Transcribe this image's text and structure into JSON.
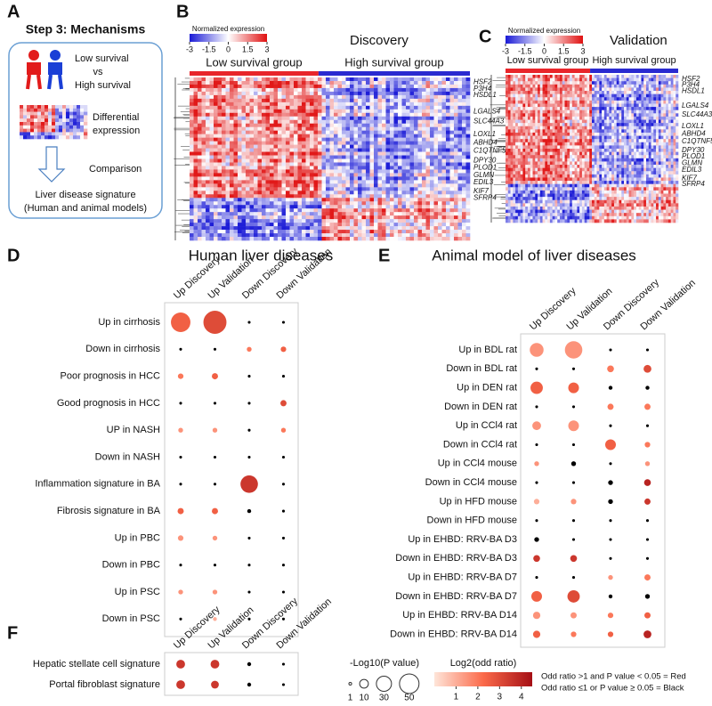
{
  "panel_labels": [
    "A",
    "B",
    "C",
    "D",
    "E",
    "F"
  ],
  "workflow": {
    "title": "Step 3: Mechanisms",
    "group_a": "Low survival",
    "versus": "vs",
    "group_b": "High survival",
    "step1": [
      "Differential",
      "expression"
    ],
    "step2": "Comparison",
    "result": [
      "Liver disease signature",
      "(Human and animal models)"
    ]
  },
  "chart_data": [
    {
      "type": "heatmap",
      "title": "Discovery",
      "colorbar_label": "Normalized expression",
      "colorbar_ticks": [
        -3,
        -1.5,
        0,
        1.5,
        3
      ],
      "groups": [
        {
          "name": "Low survival group",
          "color": "#e8252a"
        },
        {
          "name": "High survival group",
          "color": "#2a2ad0"
        }
      ],
      "genes": [
        "HSF2",
        "P3H4",
        "HSDL1",
        "LGALS4",
        "SLC44A3",
        "LOXL1",
        "ABHD4",
        "C1QTNF5",
        "DPY30",
        "PLOD1",
        "GLMN",
        "EDIL3",
        "KIF7",
        "SFRP4"
      ]
    },
    {
      "type": "heatmap",
      "title": "Validation",
      "colorbar_label": "Normalized expression",
      "colorbar_ticks": [
        -3,
        -1.5,
        0,
        1.5,
        3
      ],
      "groups": [
        {
          "name": "Low survival group",
          "color": "#e8252a"
        },
        {
          "name": "High survival group",
          "color": "#2a2ad0"
        }
      ],
      "genes": [
        "HSF2",
        "P3H4",
        "HSDL1",
        "LGALS4",
        "SLC44A3",
        "LOXL1",
        "ABHD4",
        "C1QTNF5",
        "DPY30",
        "PLOD1",
        "GLMN",
        "EDIL3",
        "KIF7",
        "SFRP4"
      ]
    },
    {
      "type": "dot",
      "title": "Human liver diseases",
      "columns": [
        "Up Discovery",
        "Up Validation",
        "Down Discovery",
        "Down Validation"
      ],
      "rows": [
        "Up in cirrhosis",
        "Down in cirrhosis",
        "Poor prognosis in HCC",
        "Good prognosis in HCC",
        "UP in NASH",
        "Down in NASH",
        "Inflammation signature in BA",
        "Fibrosis signature in BA",
        "Up in PBC",
        "Down in PBC",
        "Up in PSC",
        "Down in PSC"
      ],
      "size": [
        [
          50,
          70,
          1,
          1
        ],
        [
          1,
          1,
          3,
          4
        ],
        [
          4,
          5,
          1,
          1
        ],
        [
          1,
          1,
          1,
          5
        ],
        [
          3,
          3,
          1,
          3
        ],
        [
          1,
          1,
          1,
          1
        ],
        [
          1,
          1,
          40,
          1
        ],
        [
          5,
          5,
          2,
          1
        ],
        [
          4,
          3,
          1,
          1
        ],
        [
          1,
          1,
          1,
          1
        ],
        [
          3,
          3,
          1,
          1
        ],
        [
          1,
          2,
          1,
          1
        ]
      ],
      "log2_or": [
        [
          2.5,
          3,
          null,
          null
        ],
        [
          null,
          null,
          2,
          2.5
        ],
        [
          2,
          2.5,
          null,
          null
        ],
        [
          null,
          null,
          null,
          3
        ],
        [
          1.5,
          1.5,
          null,
          2
        ],
        [
          null,
          null,
          null,
          null
        ],
        [
          null,
          null,
          3.5,
          null
        ],
        [
          2.5,
          2.5,
          null,
          null
        ],
        [
          1.5,
          1.5,
          null,
          null
        ],
        [
          null,
          null,
          null,
          null
        ],
        [
          1.5,
          1.5,
          null,
          null
        ],
        [
          null,
          1,
          null,
          null
        ]
      ]
    },
    {
      "type": "dot",
      "title": "Animal model of liver diseases",
      "columns": [
        "Up Discovery",
        "Up Validation",
        "Down Discovery",
        "Down Validation"
      ],
      "rows": [
        "Up in BDL rat",
        "Down in BDL rat",
        "Up in DEN rat",
        "Down in DEN rat",
        "Up in CCl4 rat",
        "Down in CCl4 rat",
        "Up in CCl4 mouse",
        "Down in CCl4 mouse",
        "Up in HFD mouse",
        "Down in HFD mouse",
        "Up in EHBD: RRV-BA D3",
        "Down in EHBD: RRV-BA D3",
        "Up in EHBD: RRV-BA D7",
        "Down in EHBD: RRV-BA D7",
        "Up in EHBD: RRV-BA D14",
        "Down in EHBD: RRV-BA D14"
      ],
      "size": [
        [
          25,
          40,
          1,
          1
        ],
        [
          1,
          1,
          6,
          8
        ],
        [
          20,
          15,
          2,
          2
        ],
        [
          1,
          1,
          5,
          5
        ],
        [
          10,
          15,
          1,
          1
        ],
        [
          1,
          1,
          15,
          4
        ],
        [
          3,
          3,
          1,
          3
        ],
        [
          1,
          1,
          3,
          6
        ],
        [
          4,
          4,
          3,
          5
        ],
        [
          1,
          1,
          1,
          1
        ],
        [
          3,
          1,
          1,
          1
        ],
        [
          6,
          6,
          1,
          1
        ],
        [
          1,
          1,
          3,
          5
        ],
        [
          15,
          20,
          2,
          3
        ],
        [
          7,
          5,
          4,
          5
        ],
        [
          7,
          4,
          4,
          8
        ]
      ],
      "log2_or": [
        [
          1.5,
          1.5,
          null,
          null
        ],
        [
          null,
          null,
          2,
          3
        ],
        [
          2.5,
          2.5,
          null,
          null
        ],
        [
          null,
          null,
          2,
          2
        ],
        [
          1.5,
          1.5,
          null,
          null
        ],
        [
          null,
          null,
          2.5,
          2
        ],
        [
          1.5,
          null,
          null,
          1.5
        ],
        [
          null,
          null,
          null,
          4
        ],
        [
          1,
          1.5,
          null,
          3.5
        ],
        [
          null,
          null,
          null,
          null
        ],
        [
          null,
          null,
          null,
          null
        ],
        [
          3.5,
          3.5,
          null,
          null
        ],
        [
          null,
          null,
          1.5,
          2
        ],
        [
          2.5,
          3,
          null,
          null
        ],
        [
          1.5,
          1.5,
          2,
          2.5
        ],
        [
          2.5,
          2,
          2.5,
          4
        ]
      ]
    },
    {
      "type": "dot",
      "columns": [
        "Up Discovery",
        "Up Validation",
        "Down Discovery",
        "Down Validation"
      ],
      "rows": [
        "Hepatic stellate cell signature",
        "Portal fibroblast signature"
      ],
      "size": [
        [
          10,
          10,
          2,
          1
        ],
        [
          10,
          8,
          2,
          1
        ]
      ],
      "log2_or": [
        [
          3.5,
          3.5,
          null,
          null
        ],
        [
          3.5,
          3.5,
          null,
          null
        ]
      ]
    }
  ],
  "legend": {
    "size_title": "-Log10(P value)",
    "size_ticks": [
      1,
      10,
      30,
      50
    ],
    "color_title": "Log2(odd ratio)",
    "color_lim": [
      0,
      4.5
    ],
    "color_ticks": [
      1,
      2,
      3,
      4
    ],
    "note": [
      "Odd ratio >1 and P value < 0.05 = Red",
      "Odd ratio ≤1 or P value ≥ 0.05 = Black"
    ]
  }
}
